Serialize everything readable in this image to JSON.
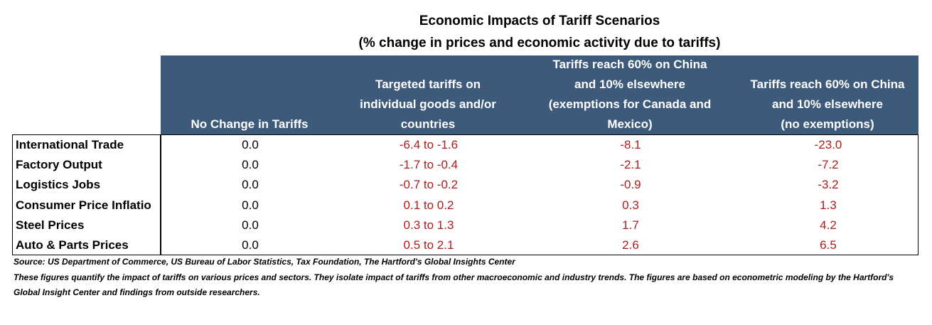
{
  "title_line1": "Economic Impacts of Tariff Scenarios",
  "title_line2": "(% change in prices and economic activity due to tariffs)",
  "chart_data": {
    "type": "table",
    "title": "Economic Impacts of Tariff Scenarios",
    "subtitle": "(% change in prices and economic activity due to tariffs)",
    "columns": [
      {
        "lines": [
          "No Change in Tariffs"
        ]
      },
      {
        "lines": [
          "Targeted tariffs on",
          "individual goods and/or",
          "countries"
        ]
      },
      {
        "lines": [
          "Tariffs reach 60% on China",
          "and 10% elsewhere",
          "(exemptions for Canada and",
          "Mexico)"
        ]
      },
      {
        "lines": [
          "Tariffs reach 60% on China",
          "and 10% elsewhere",
          "(no exemptions)"
        ]
      }
    ],
    "rows": [
      {
        "label": "International Trade",
        "values": [
          "0.0",
          "-6.4 to -1.6",
          "-8.1",
          "-23.0"
        ]
      },
      {
        "label": "Factory Output",
        "values": [
          "0.0",
          "-1.7 to -0.4",
          "-2.1",
          "-7.2"
        ]
      },
      {
        "label": "Logistics Jobs",
        "values": [
          "0.0",
          "-0.7 to -0.2",
          "-0.9",
          "-3.2"
        ]
      },
      {
        "label": "Consumer Price Inflatio",
        "values": [
          "0.0",
          "0.1 to 0.2",
          "0.3",
          "1.3"
        ]
      },
      {
        "label": "Steel Prices",
        "values": [
          "0.0",
          "0.3 to 1.3",
          "1.7",
          "4.2"
        ]
      },
      {
        "label": "Auto & Parts Prices",
        "values": [
          "0.0",
          "0.5 to 2.1",
          "2.6",
          "6.5"
        ]
      }
    ],
    "colors": {
      "header_bg": "#3d5a7b",
      "header_text": "#ffffff",
      "value_text": "#b01c1c",
      "zero_text": "#000000"
    }
  },
  "footnote_source": "Source: US Department of Commerce, US Bureau of Labor Statistics, Tax Foundation, The Hartford's Global Insights Center",
  "footnote_note": "These figures quantify the impact of tariffs on various prices and sectors. They isolate impact of tariffs from other macroeconomic and industry trends. The figures are based on econometric modeling by the Hartford's Global Insight Center and findings from outside researchers."
}
